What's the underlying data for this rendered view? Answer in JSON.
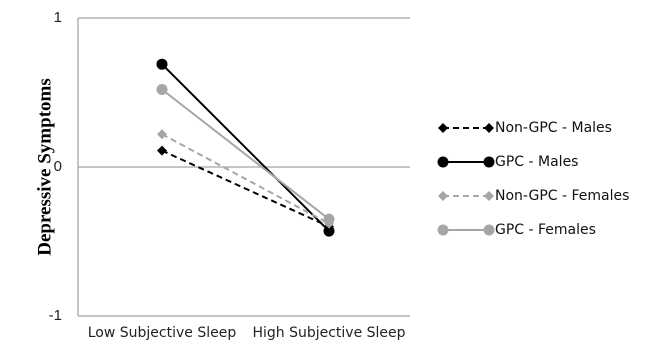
{
  "chart_data": {
    "type": "line",
    "title": "",
    "xlabel": "",
    "ylabel": "Depressive Symptoms",
    "categories": [
      "Low Subjective Sleep",
      "High Subjective Sleep"
    ],
    "ylim": [
      -1,
      1
    ],
    "yticks": [
      "1",
      "0",
      "-1"
    ],
    "grid": "horizontal",
    "legend_position": "right",
    "series": [
      {
        "name": "Non-GPC - Males",
        "values": [
          0.11,
          -0.4
        ],
        "color": "#000000",
        "line_style": "dashed",
        "marker": "diamond"
      },
      {
        "name": "GPC  - Males",
        "values": [
          0.69,
          -0.43
        ],
        "color": "#000000",
        "line_style": "solid",
        "marker": "circle"
      },
      {
        "name": "Non-GPC - Females",
        "values": [
          0.22,
          -0.38
        ],
        "color": "#a6a6a6",
        "line_style": "dashed",
        "marker": "diamond"
      },
      {
        "name": "GPC  - Females",
        "values": [
          0.52,
          -0.35
        ],
        "color": "#a6a6a6",
        "line_style": "solid",
        "marker": "circle"
      }
    ]
  }
}
